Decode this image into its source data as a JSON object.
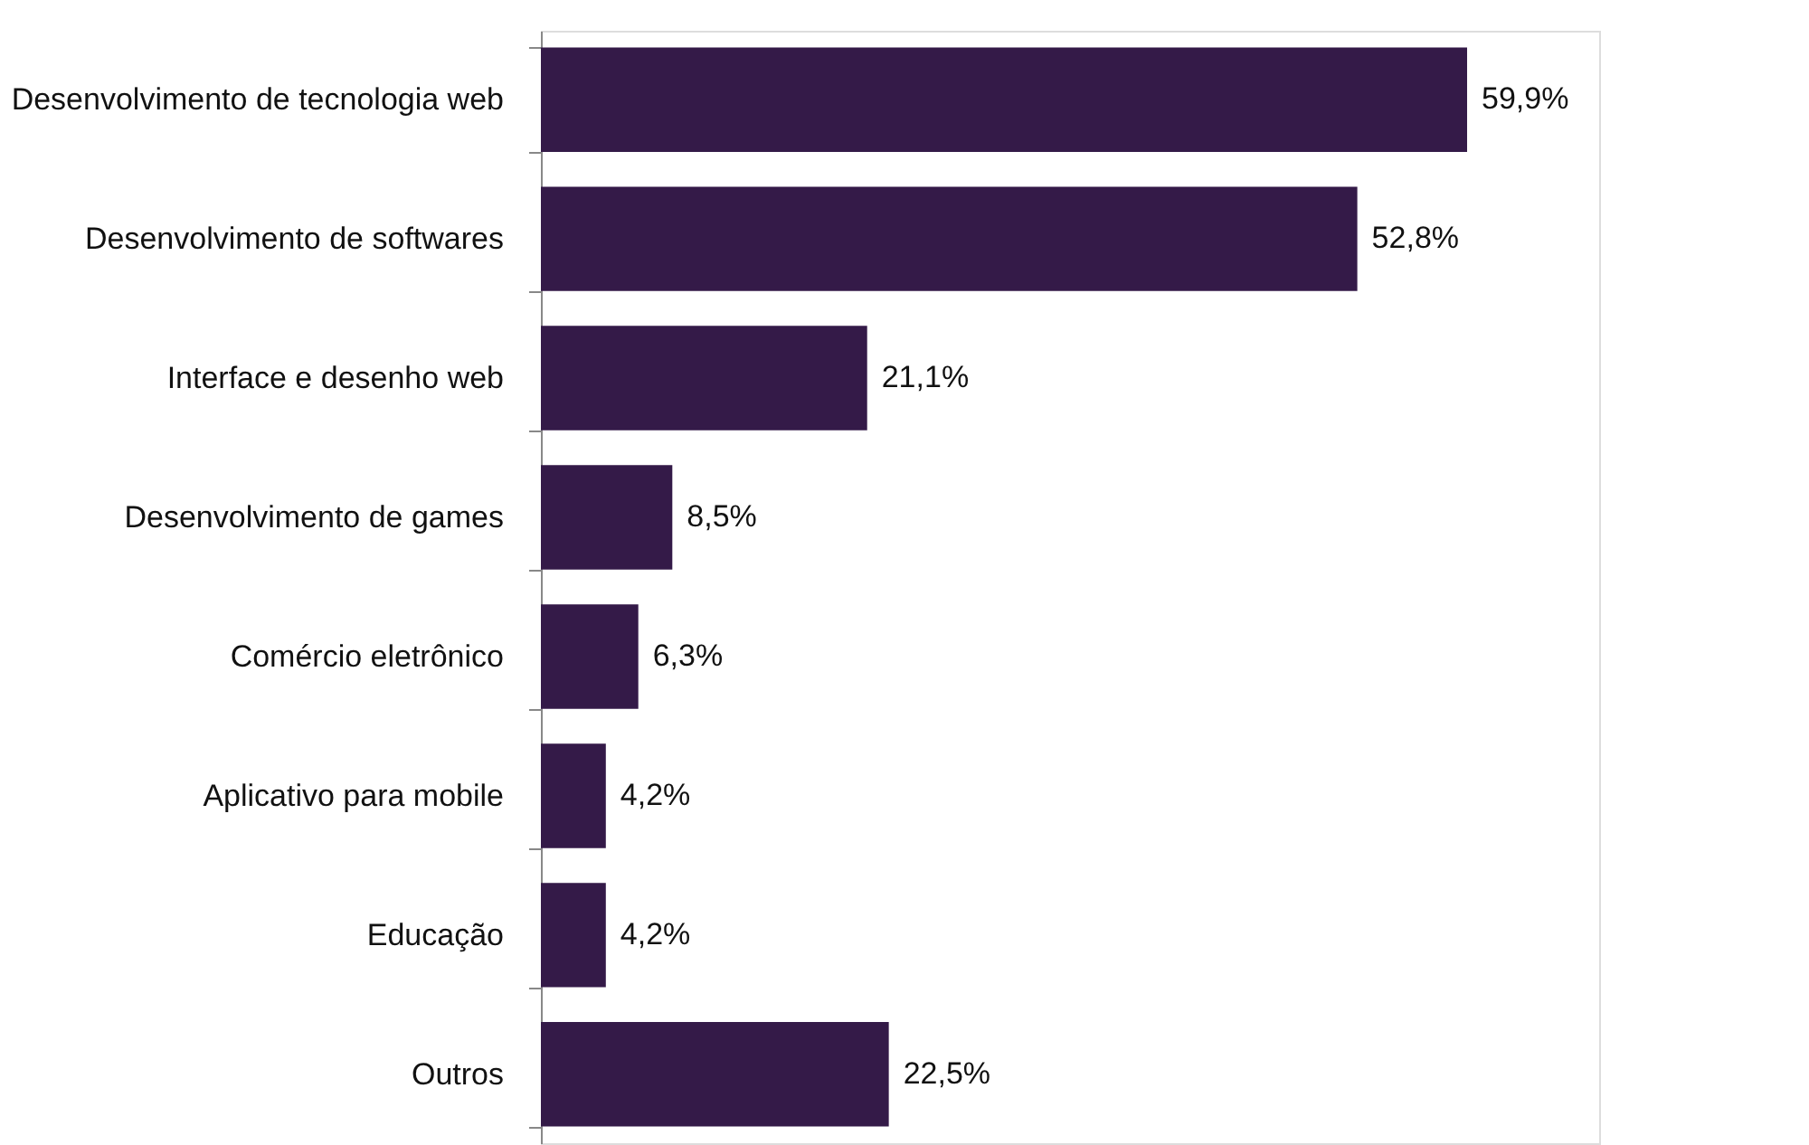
{
  "chart_data": {
    "type": "bar",
    "orientation": "horizontal",
    "categories": [
      "Desenvolvimento de tecnologia web",
      "Desenvolvimento de softwares",
      "Interface e desenho web",
      "Desenvolvimento de games",
      "Comércio eletrônico",
      "Aplicativo para mobile",
      "Educação",
      "Outros"
    ],
    "values": [
      59.9,
      52.8,
      21.1,
      8.5,
      6.3,
      4.2,
      4.2,
      22.5
    ],
    "value_labels": [
      "59,9%",
      "52,8%",
      "21,1%",
      "8,5%",
      "6,3%",
      "4,2%",
      "4,2%",
      "22,5%"
    ],
    "color": "#341a48"
  }
}
